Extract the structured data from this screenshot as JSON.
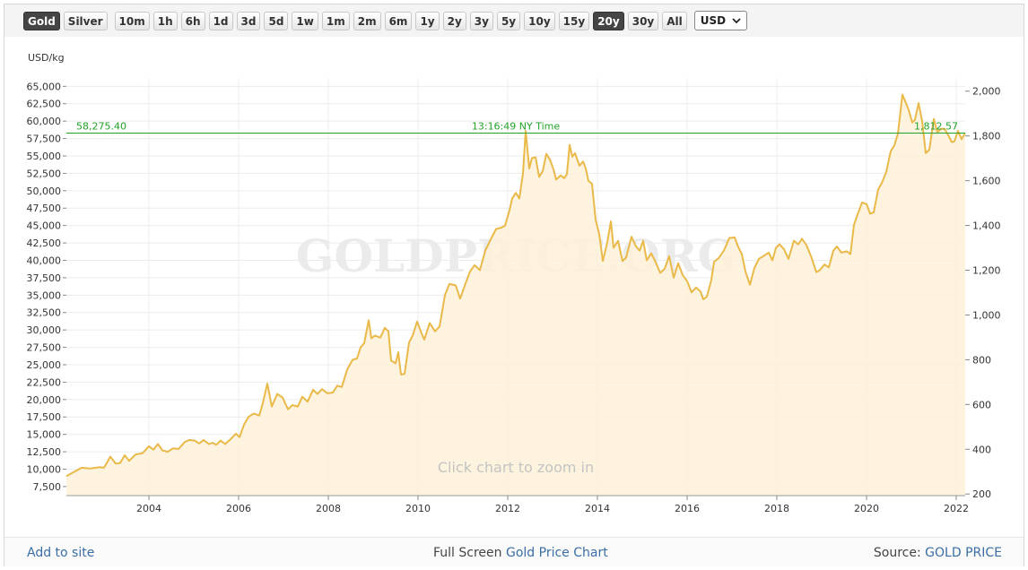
{
  "toolbar": {
    "metals": [
      "Gold",
      "Silver"
    ],
    "active_metal": 0,
    "ranges": [
      "10m",
      "1h",
      "6h",
      "1d",
      "3d",
      "5d",
      "1w",
      "1m",
      "2m",
      "6m",
      "1y",
      "2y",
      "3y",
      "5y",
      "10y",
      "15y",
      "20y",
      "30y",
      "All"
    ],
    "active_range": 16,
    "currency": "USD"
  },
  "chart_data": {
    "type": "area",
    "y_label": "USD/kg",
    "watermark": "GOLDPRICE.ORG",
    "annotation": "Click chart to zoom in",
    "color": "#e9b949",
    "fill": "#fdf1d8",
    "grid": true,
    "reference_line": {
      "value": 58275.4,
      "label": "58,275.40",
      "value_y2": {
        "value": 1812.57,
        "label": "1,812.57"
      },
      "time_label": "13:16:49 NY Time",
      "color": "#22a22a"
    },
    "xlim": [
      2002.16,
      2022.2
    ],
    "xticks": [
      2004,
      2006,
      2008,
      2010,
      2012,
      2014,
      2016,
      2018,
      2020,
      2022
    ],
    "ylim": [
      6200,
      66200
    ],
    "yticks": [
      {
        "value": 7500,
        "label": "7,500"
      },
      {
        "value": 10000,
        "label": "10,000"
      },
      {
        "value": 12500,
        "label": "12,500"
      },
      {
        "value": 15000,
        "label": "15,000"
      },
      {
        "value": 17500,
        "label": "17,500"
      },
      {
        "value": 20000,
        "label": "20,000"
      },
      {
        "value": 22500,
        "label": "22,500"
      },
      {
        "value": 25000,
        "label": "25,000"
      },
      {
        "value": 27500,
        "label": "27,500"
      },
      {
        "value": 30000,
        "label": "30,000"
      },
      {
        "value": 32500,
        "label": "32,500"
      },
      {
        "value": 35000,
        "label": "35,000"
      },
      {
        "value": 37500,
        "label": "37,500"
      },
      {
        "value": 40000,
        "label": "40,000"
      },
      {
        "value": 42500,
        "label": "42,500"
      },
      {
        "value": 45000,
        "label": "45,000"
      },
      {
        "value": 47500,
        "label": "47,500"
      },
      {
        "value": 50000,
        "label": "50,000"
      },
      {
        "value": 52500,
        "label": "52,500"
      },
      {
        "value": 55000,
        "label": "55,000"
      },
      {
        "value": 57500,
        "label": "57,500"
      },
      {
        "value": 60000,
        "label": "60,000"
      },
      {
        "value": 62500,
        "label": "62,500"
      },
      {
        "value": 65000,
        "label": "65,000"
      }
    ],
    "y2lim": [
      192.84,
      2059.05
    ],
    "y2ticks": [
      200,
      400,
      600,
      800,
      {
        "value": 1000,
        "label": "1,000"
      },
      {
        "value": 1200,
        "label": "1,200"
      },
      {
        "value": 1400,
        "label": "1,400"
      },
      {
        "value": 1600,
        "label": "1,600"
      },
      {
        "value": 1800,
        "label": "1,800"
      },
      {
        "value": 2000,
        "label": "2,000"
      }
    ],
    "x": [
      2002.16,
      2002.3,
      2002.5,
      2002.7,
      2002.9,
      2003.0,
      2003.14,
      2003.26,
      2003.36,
      2003.46,
      2003.56,
      2003.7,
      2003.86,
      2004.0,
      2004.1,
      2004.2,
      2004.3,
      2004.42,
      2004.54,
      2004.66,
      2004.8,
      2004.9,
      2005.02,
      2005.12,
      2005.22,
      2005.34,
      2005.42,
      2005.5,
      2005.6,
      2005.7,
      2005.82,
      2005.94,
      2006.02,
      2006.12,
      2006.22,
      2006.34,
      2006.46,
      2006.54,
      2006.64,
      2006.74,
      2006.86,
      2006.98,
      2007.1,
      2007.2,
      2007.32,
      2007.42,
      2007.54,
      2007.66,
      2007.76,
      2007.86,
      2007.98,
      2008.1,
      2008.2,
      2008.3,
      2008.42,
      2008.54,
      2008.64,
      2008.72,
      2008.8,
      2008.9,
      2008.96,
      2009.04,
      2009.16,
      2009.26,
      2009.34,
      2009.4,
      2009.5,
      2009.56,
      2009.62,
      2009.7,
      2009.8,
      2009.88,
      2009.98,
      2010.08,
      2010.14,
      2010.26,
      2010.38,
      2010.48,
      2010.6,
      2010.7,
      2010.84,
      2010.94,
      2011.06,
      2011.16,
      2011.26,
      2011.38,
      2011.5,
      2011.62,
      2011.74,
      2011.86,
      2011.94,
      2012.04,
      2012.1,
      2012.18,
      2012.26,
      2012.34,
      2012.4,
      2012.48,
      2012.54,
      2012.62,
      2012.7,
      2012.78,
      2012.86,
      2012.94,
      2013.02,
      2013.08,
      2013.18,
      2013.26,
      2013.32,
      2013.38,
      2013.44,
      2013.5,
      2013.6,
      2013.68,
      2013.74,
      2013.8,
      2013.88,
      2013.96,
      2014.04,
      2014.12,
      2014.22,
      2014.3,
      2014.36,
      2014.46,
      2014.56,
      2014.64,
      2014.76,
      2014.86,
      2014.94,
      2015.02,
      2015.1,
      2015.2,
      2015.3,
      2015.4,
      2015.5,
      2015.6,
      2015.7,
      2015.8,
      2015.9,
      2016.0,
      2016.1,
      2016.2,
      2016.3,
      2016.36,
      2016.44,
      2016.54,
      2016.6,
      2016.7,
      2016.82,
      2016.94,
      2017.06,
      2017.14,
      2017.22,
      2017.3,
      2017.4,
      2017.5,
      2017.6,
      2017.7,
      2017.82,
      2017.9,
      2017.98,
      2018.06,
      2018.16,
      2018.26,
      2018.38,
      2018.48,
      2018.56,
      2018.66,
      2018.78,
      2018.88,
      2018.96,
      2019.06,
      2019.16,
      2019.26,
      2019.34,
      2019.44,
      2019.56,
      2019.64,
      2019.72,
      2019.8,
      2019.9,
      2020.0,
      2020.08,
      2020.16,
      2020.26,
      2020.34,
      2020.44,
      2020.54,
      2020.62,
      2020.7,
      2020.8,
      2020.86,
      2020.94,
      2021.02,
      2021.08,
      2021.16,
      2021.24,
      2021.32,
      2021.4,
      2021.5,
      2021.58,
      2021.66,
      2021.74,
      2021.82,
      2021.9,
      2021.96,
      2022.04,
      2022.12,
      2022.2
    ],
    "values": [
      9000,
      9500,
      10200,
      10100,
      10300,
      10200,
      11800,
      10800,
      10900,
      12000,
      11200,
      12100,
      12300,
      13300,
      12800,
      13600,
      12700,
      12500,
      13000,
      12900,
      13900,
      14200,
      14100,
      13700,
      14200,
      13600,
      13800,
      13500,
      14100,
      13600,
      14300,
      15100,
      14600,
      16400,
      17500,
      18000,
      17700,
      19500,
      22300,
      19000,
      20800,
      20300,
      18600,
      19200,
      19000,
      20400,
      19700,
      21400,
      20800,
      21500,
      20900,
      21000,
      22000,
      21800,
      24300,
      25700,
      25900,
      27500,
      28100,
      31400,
      28800,
      29200,
      28900,
      30300,
      29800,
      25600,
      25200,
      26800,
      23600,
      23700,
      28200,
      29200,
      31200,
      29500,
      28600,
      31000,
      29800,
      30500,
      35000,
      36600,
      36400,
      34500,
      36700,
      38400,
      39300,
      38600,
      41400,
      43000,
      44500,
      44700,
      45000,
      47200,
      48900,
      49700,
      48900,
      52500,
      58600,
      53200,
      54700,
      54800,
      52000,
      52800,
      55300,
      54500,
      53100,
      51600,
      52200,
      51800,
      52400,
      56600,
      54900,
      55400,
      53600,
      54200,
      53200,
      51400,
      51000,
      45800,
      43800,
      39900,
      42600,
      45600,
      41800,
      42800,
      39900,
      40400,
      43400,
      42000,
      41400,
      42800,
      40000,
      41000,
      39700,
      38200,
      38800,
      40600,
      37500,
      39600,
      37900,
      37000,
      35400,
      36100,
      35500,
      34400,
      34800,
      37200,
      39800,
      40300,
      41400,
      43200,
      43300,
      41900,
      40900,
      38400,
      36500,
      38900,
      40200,
      40600,
      41100,
      40000,
      41800,
      42300,
      41600,
      40200,
      42800,
      42300,
      43100,
      42200,
      40300,
      38300,
      38600,
      39400,
      39000,
      41400,
      42000,
      41100,
      41300,
      40900,
      45100,
      46600,
      48300,
      48100,
      46700,
      46900,
      50200,
      51100,
      52700,
      55700,
      56500,
      58200,
      63800,
      62900,
      61600,
      59800,
      60200,
      62600,
      60000,
      55400,
      55900,
      60300,
      58400,
      58900,
      58900,
      58000,
      57000,
      57100,
      58600,
      57400,
      58300
    ]
  },
  "footer": {
    "left": "Add to site",
    "center_prefix": "Full Screen",
    "center_link": "Gold Price Chart",
    "right_prefix": "Source:",
    "right_link": "GOLD PRICE"
  }
}
